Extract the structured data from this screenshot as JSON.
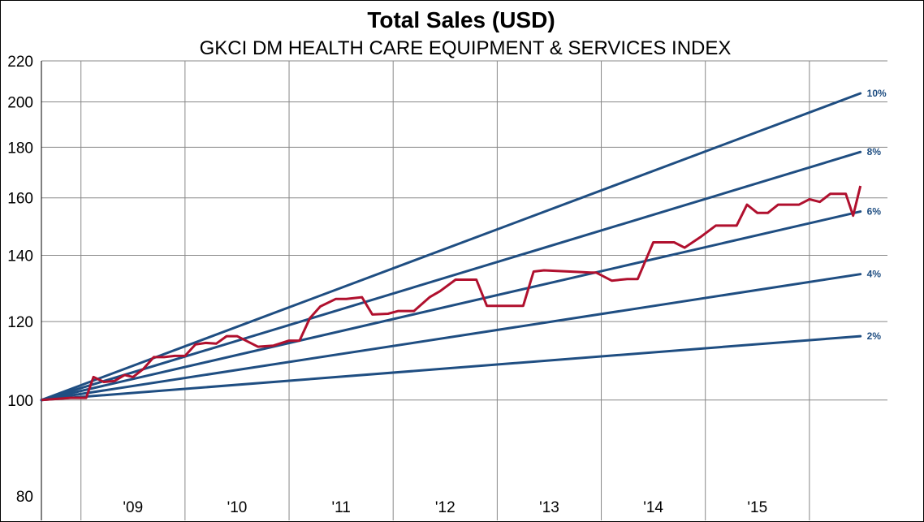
{
  "chart_data": {
    "type": "line",
    "title": "Total Sales (USD)",
    "subtitle": "GKCI DM HEALTH CARE EQUIPMENT & SERVICES INDEX",
    "xlabel": "",
    "ylabel": "",
    "y_scale": "log",
    "ylim": [
      80,
      220
    ],
    "y_ticks": [
      80,
      100,
      120,
      140,
      160,
      180,
      200,
      220
    ],
    "xlim": [
      2008.12,
      2016.25
    ],
    "x_ticks": [
      {
        "label": "'09",
        "x": 2009.0
      },
      {
        "label": "'10",
        "x": 2010.0
      },
      {
        "label": "'11",
        "x": 2011.0
      },
      {
        "label": "'12",
        "x": 2012.0
      },
      {
        "label": "'13",
        "x": 2013.0
      },
      {
        "label": "'14",
        "x": 2014.0
      },
      {
        "label": "'15",
        "x": 2015.0
      }
    ],
    "grid": true,
    "reference_lines": [
      {
        "label": "10%",
        "start": [
          2008.12,
          100
        ],
        "end": [
          2015.99,
          204
        ]
      },
      {
        "label": "8%",
        "start": [
          2008.12,
          100
        ],
        "end": [
          2015.99,
          178
        ]
      },
      {
        "label": "6%",
        "start": [
          2008.12,
          100
        ],
        "end": [
          2015.99,
          155
        ]
      },
      {
        "label": "4%",
        "start": [
          2008.12,
          100
        ],
        "end": [
          2015.99,
          134
        ]
      },
      {
        "label": "2%",
        "start": [
          2008.12,
          100
        ],
        "end": [
          2015.99,
          116
        ]
      }
    ],
    "series": [
      {
        "x": [
          2008.12,
          2008.4,
          2008.55,
          2008.62,
          2008.72,
          2008.82,
          2008.92,
          2009.0,
          2009.1,
          2009.2,
          2009.3,
          2009.4,
          2009.5,
          2009.6,
          2009.7,
          2009.8,
          2009.9,
          2010.0,
          2010.2,
          2010.35,
          2010.5,
          2010.6,
          2010.7,
          2010.8,
          2010.95,
          2011.05,
          2011.2,
          2011.3,
          2011.45,
          2011.55,
          2011.7,
          2011.85,
          2011.95,
          2012.1,
          2012.3,
          2012.4,
          2012.6,
          2012.75,
          2012.85,
          2012.95,
          2013.2,
          2013.4,
          2013.45,
          2013.6,
          2013.75,
          2013.85,
          2014.0,
          2014.15,
          2014.2,
          2014.3,
          2014.45,
          2014.6,
          2014.8,
          2014.9,
          2015.0,
          2015.1,
          2015.2,
          2015.3,
          2015.4,
          2015.5,
          2015.6,
          2015.7,
          2015.85,
          2015.92,
          2015.99
        ],
        "values": [
          100,
          100.5,
          100.5,
          105.5,
          104.3,
          104.5,
          106,
          105.5,
          107.5,
          110.5,
          110.5,
          110.8,
          110.8,
          113.8,
          114.2,
          114,
          116,
          116,
          113.2,
          113.5,
          114.8,
          114.8,
          121,
          124.3,
          126.5,
          126.5,
          127,
          122,
          122.2,
          123,
          123,
          127,
          128.8,
          132.3,
          132.3,
          124.5,
          124.5,
          124.5,
          134.8,
          135.2,
          134.8,
          134.5,
          134.5,
          132,
          132.5,
          132.5,
          144.3,
          144.3,
          144.3,
          142.5,
          146,
          150,
          150,
          157.5,
          154.5,
          154.5,
          157.5,
          157.5,
          157.5,
          159.5,
          158.5,
          161.5,
          161.5,
          153.5,
          164.5
        ]
      }
    ],
    "colors": {
      "series": "#b0102e",
      "reference": "#1f4e82",
      "grid": "#888888",
      "axis": "#000000"
    }
  }
}
